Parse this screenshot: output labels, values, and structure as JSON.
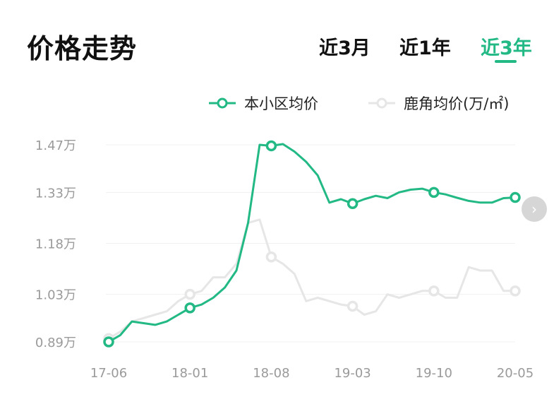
{
  "header": {
    "title": "价格走势"
  },
  "tabs": [
    {
      "label": "近3月",
      "active": false
    },
    {
      "label": "近1年",
      "active": false
    },
    {
      "label": "近3年",
      "active": true
    }
  ],
  "colors": {
    "accent": "#22b985",
    "secondary": "#e6e6e6",
    "grid": "#f0f0f0",
    "axis_text": "#9a9a9a"
  },
  "next_button": {
    "icon": "chevron-right-icon",
    "glyph": "›"
  },
  "chart_data": {
    "type": "line",
    "x": [
      "17-06",
      "17-07",
      "17-08",
      "17-09",
      "17-10",
      "17-11",
      "17-12",
      "18-01",
      "18-02",
      "18-03",
      "18-04",
      "18-05",
      "18-06",
      "18-07",
      "18-08",
      "18-09",
      "18-10",
      "18-11",
      "18-12",
      "19-01",
      "19-02",
      "19-03",
      "19-04",
      "19-05",
      "19-06",
      "19-07",
      "19-08",
      "19-09",
      "19-10",
      "19-11",
      "19-12",
      "20-01",
      "20-02",
      "20-03",
      "20-04",
      "20-05"
    ],
    "x_tick_labels": [
      "17-06",
      "18-01",
      "18-08",
      "19-03",
      "19-10",
      "20-05"
    ],
    "y_ticks": [
      0.89,
      1.03,
      1.18,
      1.33,
      1.47
    ],
    "y_tick_labels": [
      "0.89万",
      "1.03万",
      "1.18万",
      "1.33万",
      "1.47万"
    ],
    "ylim": [
      0.89,
      1.47
    ],
    "grid": true,
    "legend_position": "top-right",
    "series": [
      {
        "name": "本小区均价",
        "color": "#22b985",
        "values": [
          0.89,
          0.91,
          0.95,
          0.945,
          0.94,
          0.95,
          0.97,
          0.99,
          1.0,
          1.02,
          1.05,
          1.1,
          1.24,
          1.47,
          1.467,
          1.472,
          1.45,
          1.42,
          1.38,
          1.3,
          1.31,
          1.297,
          1.31,
          1.32,
          1.313,
          1.33,
          1.338,
          1.341,
          1.33,
          1.324,
          1.314,
          1.305,
          1.3,
          1.3,
          1.313,
          1.315
        ],
        "markers": [
          0,
          7,
          14,
          21,
          28,
          35
        ]
      },
      {
        "name": "鹿角均价(万/㎡)",
        "color": "#e6e6e6",
        "values": [
          0.9,
          0.92,
          0.95,
          0.96,
          0.97,
          0.98,
          1.01,
          1.03,
          1.04,
          1.08,
          1.08,
          1.12,
          1.24,
          1.25,
          1.14,
          1.12,
          1.09,
          1.01,
          1.02,
          1.01,
          1.0,
          0.995,
          0.97,
          0.98,
          1.03,
          1.02,
          1.03,
          1.04,
          1.04,
          1.02,
          1.02,
          1.11,
          1.1,
          1.1,
          1.04,
          1.04
        ],
        "markers": [
          0,
          7,
          14,
          21,
          28,
          35
        ]
      }
    ]
  }
}
